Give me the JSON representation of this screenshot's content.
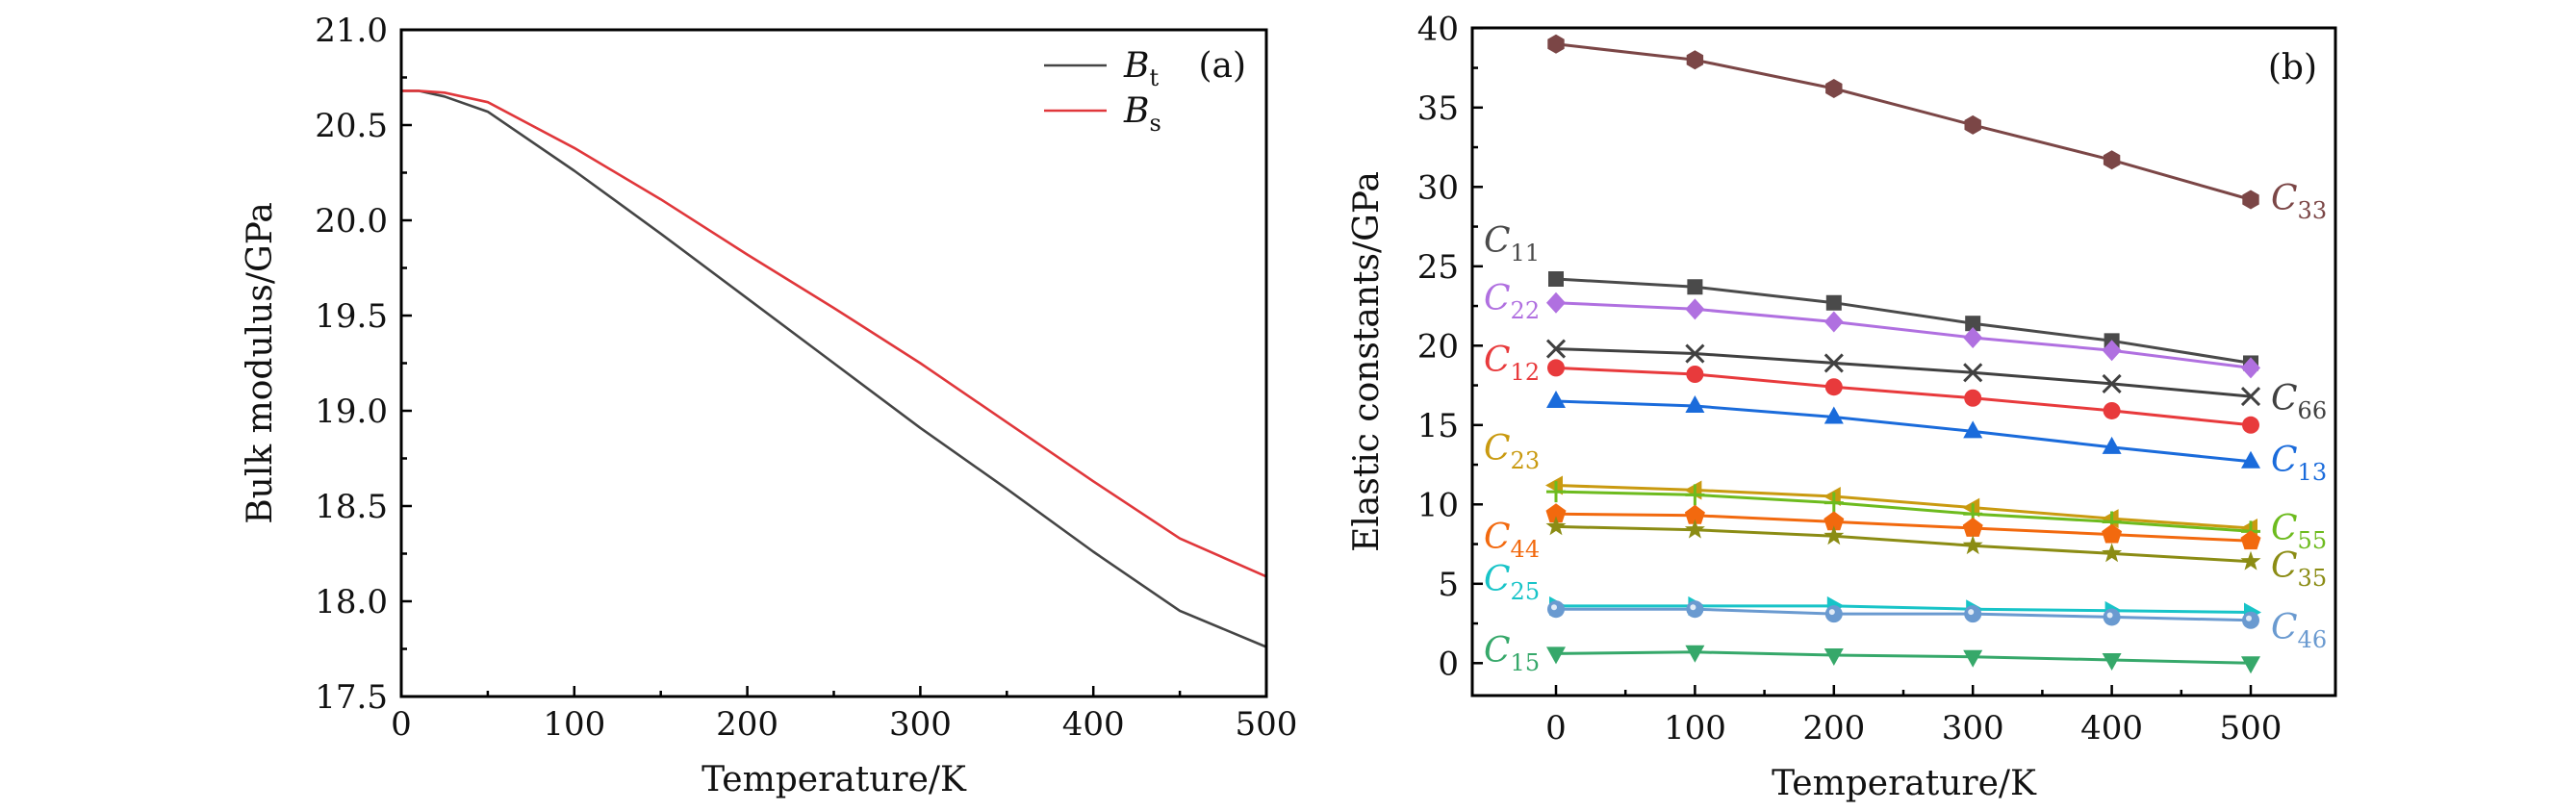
{
  "chart_data": [
    {
      "panel": "(a)",
      "type": "line",
      "xlabel": "Temperature/K",
      "ylabel": "Bulk modulus/GPa",
      "xlim": [
        0,
        500
      ],
      "ylim": [
        17.5,
        21.0
      ],
      "xticks": [
        0,
        100,
        200,
        300,
        400,
        500
      ],
      "xtick_labels": [
        "0",
        "100",
        "200",
        "300",
        "400",
        "500"
      ],
      "yticks": [
        17.5,
        18.0,
        18.5,
        19.0,
        19.5,
        20.0,
        20.5,
        21.0
      ],
      "ytick_labels": [
        "17.5",
        "18.0",
        "18.5",
        "19.0",
        "19.5",
        "20.0",
        "20.5",
        "21.0"
      ],
      "grid": false,
      "legend_position": "top-right",
      "x": [
        0,
        10,
        25,
        50,
        100,
        150,
        200,
        250,
        300,
        350,
        400,
        450,
        500
      ],
      "series": [
        {
          "name": "B",
          "subscript": "t",
          "color": "#454545",
          "values": [
            20.68,
            20.68,
            20.65,
            20.57,
            20.26,
            19.93,
            19.59,
            19.25,
            18.91,
            18.59,
            18.26,
            17.95,
            17.76
          ]
        },
        {
          "name": "B",
          "subscript": "s",
          "color": "#E0373B",
          "values": [
            20.68,
            20.68,
            20.67,
            20.62,
            20.38,
            20.11,
            19.82,
            19.54,
            19.25,
            18.94,
            18.63,
            18.33,
            18.13
          ]
        }
      ]
    },
    {
      "panel": "(b)",
      "type": "line",
      "xlabel": "Temperature/K",
      "ylabel": "Elastic constants/GPa",
      "xlim": [
        -60,
        560
      ],
      "ylim": [
        -2,
        40
      ],
      "xticks": [
        0,
        100,
        200,
        300,
        400,
        500
      ],
      "xtick_labels": [
        "0",
        "100",
        "200",
        "300",
        "400",
        "500"
      ],
      "yticks": [
        0,
        5,
        10,
        15,
        20,
        25,
        30,
        35,
        40
      ],
      "ytick_labels": [
        "0",
        "5",
        "10",
        "15",
        "20",
        "25",
        "30",
        "35",
        "40"
      ],
      "grid": false,
      "x": [
        0,
        100,
        200,
        300,
        400,
        500
      ],
      "series": [
        {
          "name": "C",
          "subscript": "33",
          "color": "#7B4646",
          "marker": "hexagon",
          "label_side": "right",
          "values": [
            39.0,
            38.0,
            36.2,
            33.9,
            31.7,
            29.2
          ]
        },
        {
          "name": "C",
          "subscript": "11",
          "color": "#4A4A4A",
          "marker": "square",
          "label_side": "left",
          "values": [
            24.2,
            23.7,
            22.7,
            21.4,
            20.3,
            18.9
          ]
        },
        {
          "name": "C",
          "subscript": "22",
          "color": "#B070E0",
          "marker": "diamond",
          "label_side": "left",
          "values": [
            22.7,
            22.3,
            21.5,
            20.5,
            19.7,
            18.6
          ]
        },
        {
          "name": "C",
          "subscript": "66",
          "color": "#404040",
          "marker": "cross",
          "label_side": "right",
          "values": [
            19.8,
            19.5,
            18.9,
            18.3,
            17.6,
            16.8
          ]
        },
        {
          "name": "C",
          "subscript": "12",
          "color": "#E83A3C",
          "marker": "circle",
          "label_side": "left",
          "values": [
            18.6,
            18.2,
            17.4,
            16.7,
            15.9,
            15.0
          ]
        },
        {
          "name": "C",
          "subscript": "13",
          "color": "#1A6BDB",
          "marker": "triangle-up",
          "label_side": "right",
          "values": [
            16.5,
            16.2,
            15.5,
            14.6,
            13.6,
            12.7
          ]
        },
        {
          "name": "C",
          "subscript": "23",
          "color": "#C99A10",
          "marker": "triangle-left",
          "label_side": "left",
          "values": [
            11.2,
            10.9,
            10.5,
            9.8,
            9.1,
            8.5
          ]
        },
        {
          "name": "C",
          "subscript": "55",
          "color": "#6DBB1E",
          "marker": "plus",
          "label_side": "right",
          "values": [
            10.8,
            10.6,
            10.1,
            9.4,
            8.9,
            8.3
          ]
        },
        {
          "name": "C",
          "subscript": "44",
          "color": "#F2690E",
          "marker": "pentagon",
          "label_side": "left",
          "values": [
            9.4,
            9.3,
            8.9,
            8.5,
            8.1,
            7.7
          ]
        },
        {
          "name": "C",
          "subscript": "35",
          "color": "#8B8C14",
          "marker": "star",
          "label_side": "right",
          "values": [
            8.6,
            8.4,
            8.0,
            7.4,
            6.9,
            6.4
          ]
        },
        {
          "name": "C",
          "subscript": "25",
          "color": "#18C4C8",
          "marker": "triangle-right",
          "label_side": "left",
          "values": [
            3.6,
            3.6,
            3.6,
            3.4,
            3.3,
            3.2
          ]
        },
        {
          "name": "C",
          "subscript": "46",
          "color": "#6A9AD0",
          "marker": "sphere",
          "label_side": "right",
          "values": [
            3.4,
            3.4,
            3.1,
            3.1,
            2.9,
            2.7
          ]
        },
        {
          "name": "C",
          "subscript": "15",
          "color": "#36A86A",
          "marker": "triangle-down",
          "label_side": "left",
          "values": [
            0.6,
            0.7,
            0.5,
            0.4,
            0.2,
            0.0
          ]
        }
      ]
    }
  ]
}
